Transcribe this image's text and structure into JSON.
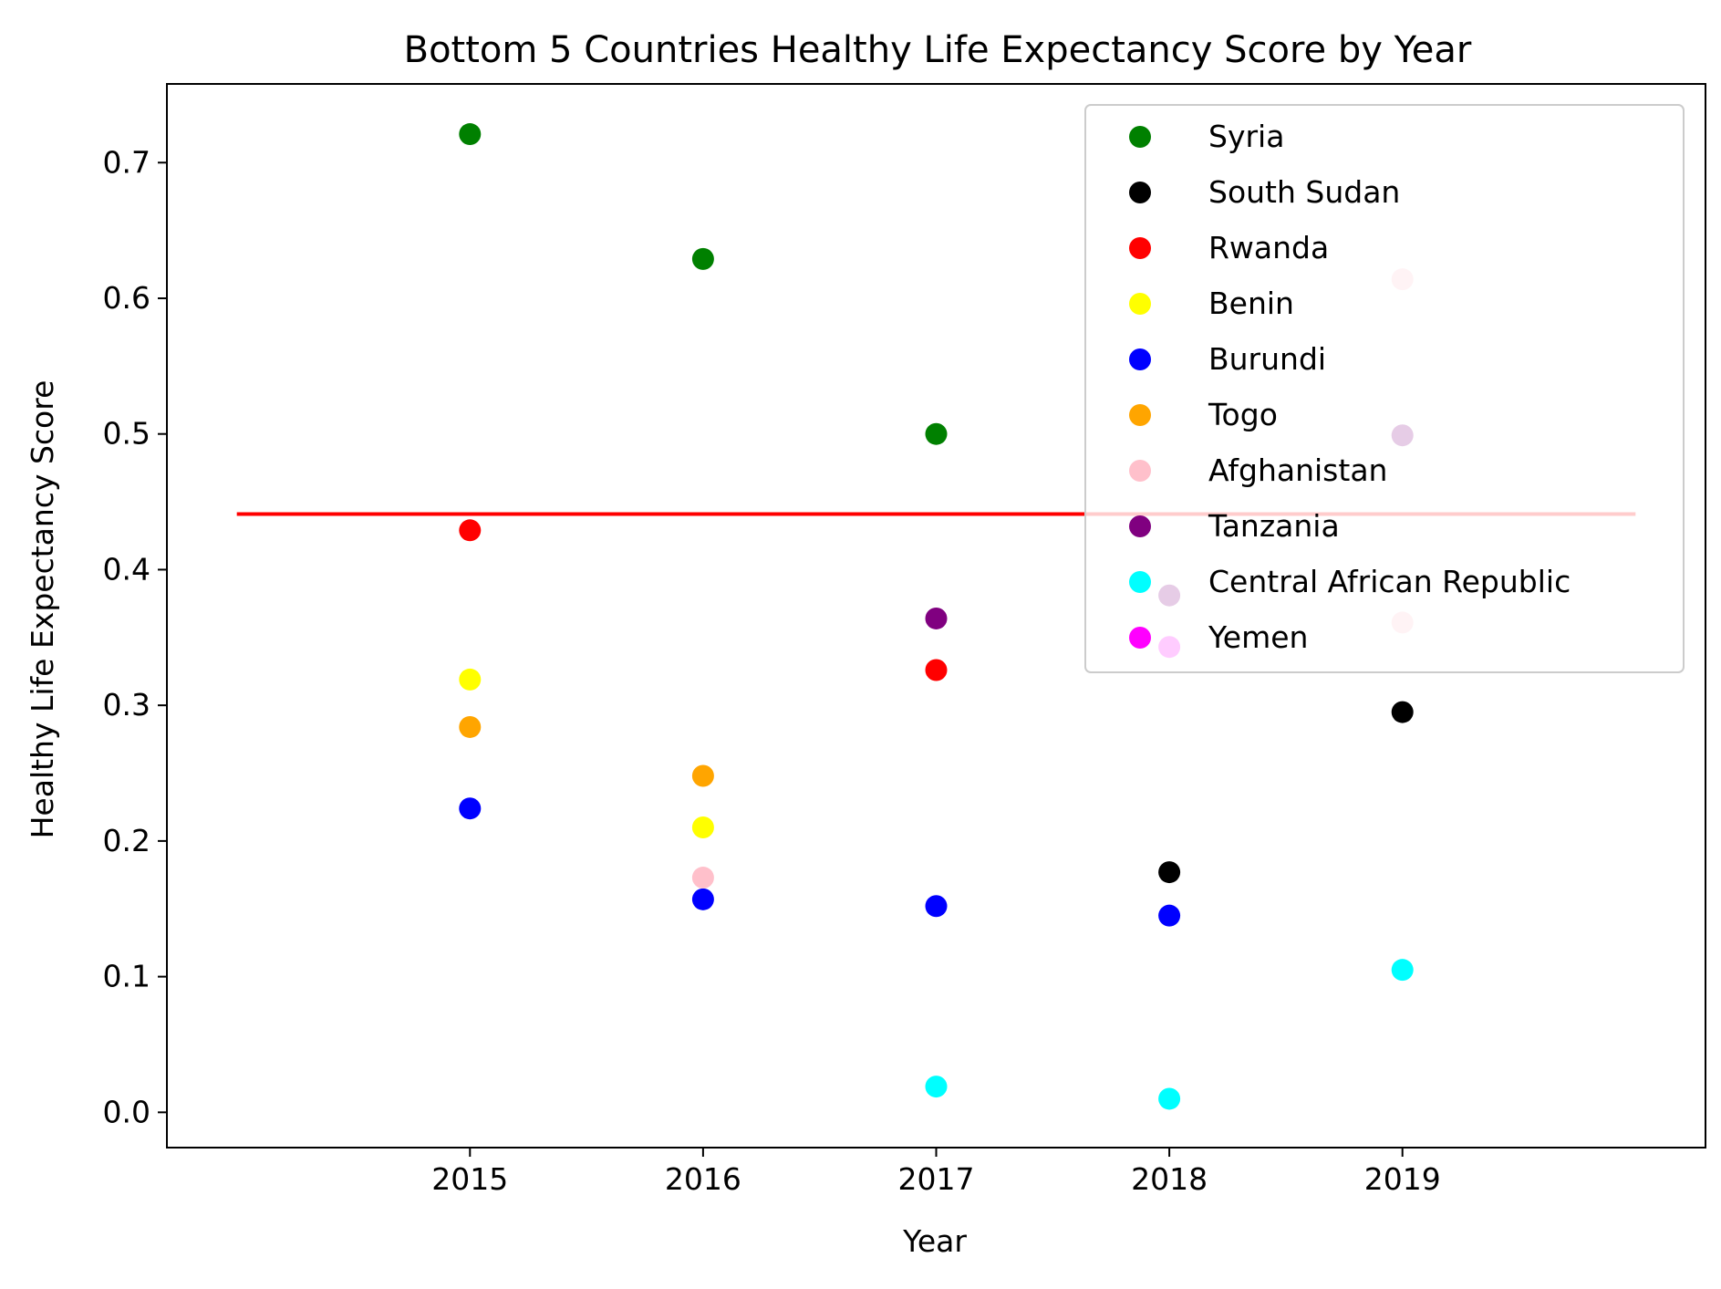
{
  "chart_data": {
    "type": "scatter",
    "title": "Bottom 5 Countries Healthy Life Expectancy Score by Year",
    "xlabel": "Year",
    "ylabel": "Healthy Life Expectancy Score",
    "x_ticks": [
      "2015",
      "2016",
      "2017",
      "2018",
      "2019"
    ],
    "y_ticks": [
      "0.0",
      "0.1",
      "0.2",
      "0.3",
      "0.4",
      "0.5",
      "0.6",
      "0.7"
    ],
    "xlim": [
      2013.7,
      2020.3
    ],
    "ylim": [
      -0.026,
      0.758
    ],
    "grid": false,
    "legend_position": "top-right",
    "reference_line": {
      "y": 0.441,
      "x_range": [
        2014,
        2020
      ],
      "color": "#ff0000"
    },
    "series": [
      {
        "name": "Syria",
        "color": "#008000",
        "points": [
          [
            2015,
            0.721
          ],
          [
            2016,
            0.629
          ],
          [
            2017,
            0.5
          ]
        ]
      },
      {
        "name": "South Sudan",
        "color": "#000000",
        "points": [
          [
            2018,
            0.177
          ],
          [
            2019,
            0.295
          ]
        ]
      },
      {
        "name": "Rwanda",
        "color": "#ff0000",
        "points": [
          [
            2015,
            0.429
          ],
          [
            2017,
            0.326
          ]
        ]
      },
      {
        "name": "Benin",
        "color": "#ffff00",
        "points": [
          [
            2015,
            0.319
          ],
          [
            2016,
            0.21
          ]
        ]
      },
      {
        "name": "Burundi",
        "color": "#0000ff",
        "points": [
          [
            2015,
            0.224
          ],
          [
            2016,
            0.157
          ],
          [
            2017,
            0.152
          ],
          [
            2018,
            0.145
          ]
        ]
      },
      {
        "name": "Togo",
        "color": "#ffa500",
        "points": [
          [
            2015,
            0.284
          ],
          [
            2016,
            0.248
          ]
        ]
      },
      {
        "name": "Afghanistan",
        "color": "#ffc0cb",
        "points": [
          [
            2016,
            0.173
          ],
          [
            2019,
            0.614
          ],
          [
            2019,
            0.361
          ]
        ]
      },
      {
        "name": "Tanzania",
        "color": "#800080",
        "points": [
          [
            2017,
            0.364
          ],
          [
            2018,
            0.381
          ],
          [
            2019,
            0.499
          ]
        ]
      },
      {
        "name": "Central African Republic",
        "color": "#00ffff",
        "points": [
          [
            2017,
            0.019
          ],
          [
            2018,
            0.01
          ],
          [
            2019,
            0.105
          ]
        ]
      },
      {
        "name": "Yemen",
        "color": "#ff00ff",
        "points": [
          [
            2018,
            0.343
          ]
        ]
      }
    ]
  }
}
